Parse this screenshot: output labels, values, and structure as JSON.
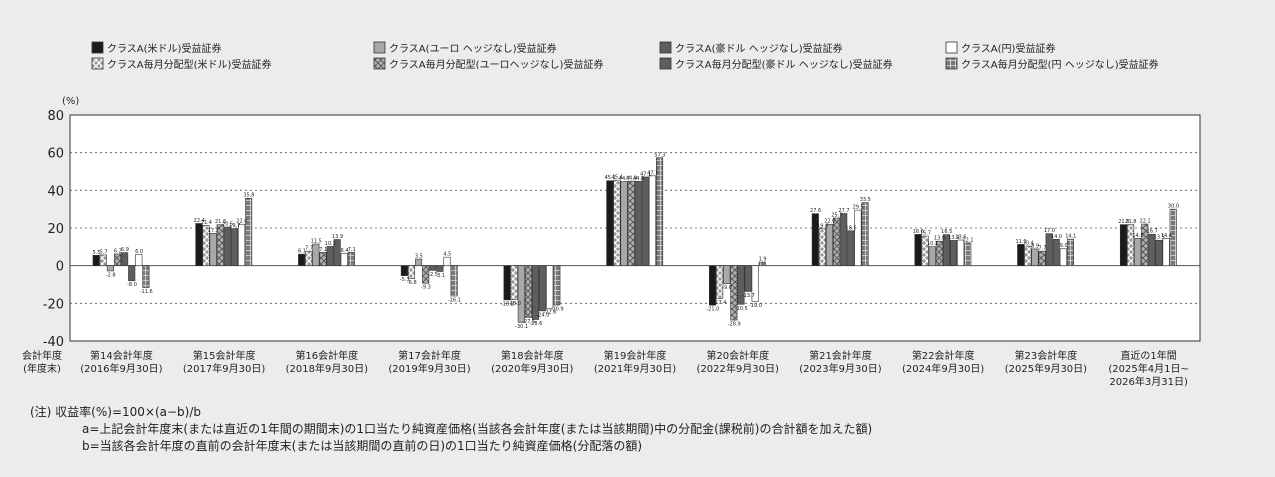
{
  "chart_data": {
    "type": "bar",
    "unit_label": "(%)",
    "ylim": [
      -40,
      80
    ],
    "yticks": [
      80,
      60,
      40,
      20,
      0,
      -20,
      -40
    ],
    "grid": true,
    "legend_placement": "top",
    "xlabel_lines": [
      "会計年度",
      "(年度末)"
    ],
    "categories": [
      [
        "第14会計年度",
        "(2016年9月30日)"
      ],
      [
        "第15会計年度",
        "(2017年9月30日)"
      ],
      [
        "第16会計年度",
        "(2018年9月30日)"
      ],
      [
        "第17会計年度",
        "(2019年9月30日)"
      ],
      [
        "第18会計年度",
        "(2020年9月30日)"
      ],
      [
        "第19会計年度",
        "(2021年9月30日)"
      ],
      [
        "第20会計年度",
        "(2022年9月30日)"
      ],
      [
        "第21会計年度",
        "(2023年9月30日)"
      ],
      [
        "第22会計年度",
        "(2024年9月30日)"
      ],
      [
        "第23会計年度",
        "(2025年9月30日)"
      ],
      [
        "直近の1年間",
        "(2025年4月1日~",
        "2026年3月31日)"
      ]
    ],
    "series": [
      {
        "name": "クラスA(米ドル)受益証券",
        "color": "#1a1a1a",
        "pattern": "solid",
        "values": [
          5.5,
          22.4,
          6.1,
          -5.3,
          -18.2,
          45.1,
          -21.0,
          27.6,
          16.6,
          11.3,
          21.8
        ]
      },
      {
        "name": "クラスA毎月分配型(米ドル)受益証券",
        "color": "#8a8a8a",
        "pattern": "cross",
        "values": [
          5.7,
          21.4,
          7.7,
          -6.8,
          -18.0,
          45.4,
          -17.4,
          19.6,
          15.7,
          10.4,
          21.8
        ]
      },
      {
        "name": "クラスA(ユーロ ヘッジなし)受益証券",
        "color": "#a8a8a8",
        "pattern": "solid",
        "values": [
          -2.8,
          17.2,
          11.5,
          3.5,
          -30.1,
          44.7,
          -9.6,
          22.0,
          10.1,
          8.9,
          14.5
        ]
      },
      {
        "name": "クラスA毎月分配型(ユーロヘッジなし)受益証券",
        "color": "#a8a8a8",
        "pattern": "diamond",
        "values": [
          6.2,
          21.8,
          7.1,
          -9.3,
          -27.5,
          44.9,
          -28.9,
          25.3,
          13.0,
          7.7,
          22.1
        ]
      },
      {
        "name": "クラスA(豪ドル ヘッジなし)受益証券",
        "color": "#5e5e5e",
        "pattern": "solid",
        "values": [
          6.9,
          20.5,
          10.2,
          -2.5,
          -28.6,
          44.8,
          -20.5,
          27.7,
          16.5,
          17.0,
          16.7
        ]
      },
      {
        "name": "クラスA毎月分配型(豪ドル ヘッジなし)受益証券",
        "color": "#5e5e5e",
        "pattern": "solid2",
        "values": [
          -8.0,
          19.7,
          13.9,
          -3.1,
          -24.0,
          47.1,
          -13.7,
          18.5,
          13.4,
          14.0,
          13.5
        ]
      },
      {
        "name": "クラスA(円)受益証券",
        "color": "#ffffff",
        "pattern": "white",
        "values": [
          6.0,
          22.0,
          6.4,
          4.5,
          -22.6,
          47.7,
          -19.0,
          29.5,
          13.6,
          9.0,
          14.4
        ]
      },
      {
        "name": "クラスA毎月分配型(円 ヘッジなし)受益証券",
        "color": "#6e6e6e",
        "pattern": "grid",
        "values": [
          -11.6,
          35.8,
          7.1,
          -16.1,
          -20.9,
          57.3,
          1.9,
          33.5,
          12.1,
          14.1,
          30.0
        ]
      }
    ]
  },
  "notes": [
    "(注) 収益率(%)=100×(a−b)/b",
    "a=上記会計年度末(または直近の1年間の期間末)の1口当たり純資産価格(当該各会計年度(または当該期間)中の分配金(課税前)の合計額を加えた額)",
    "b=当該各会計年度の直前の会計年度末(または当該期間の直前の日)の1口当たり純資産価格(分配落の額)"
  ]
}
